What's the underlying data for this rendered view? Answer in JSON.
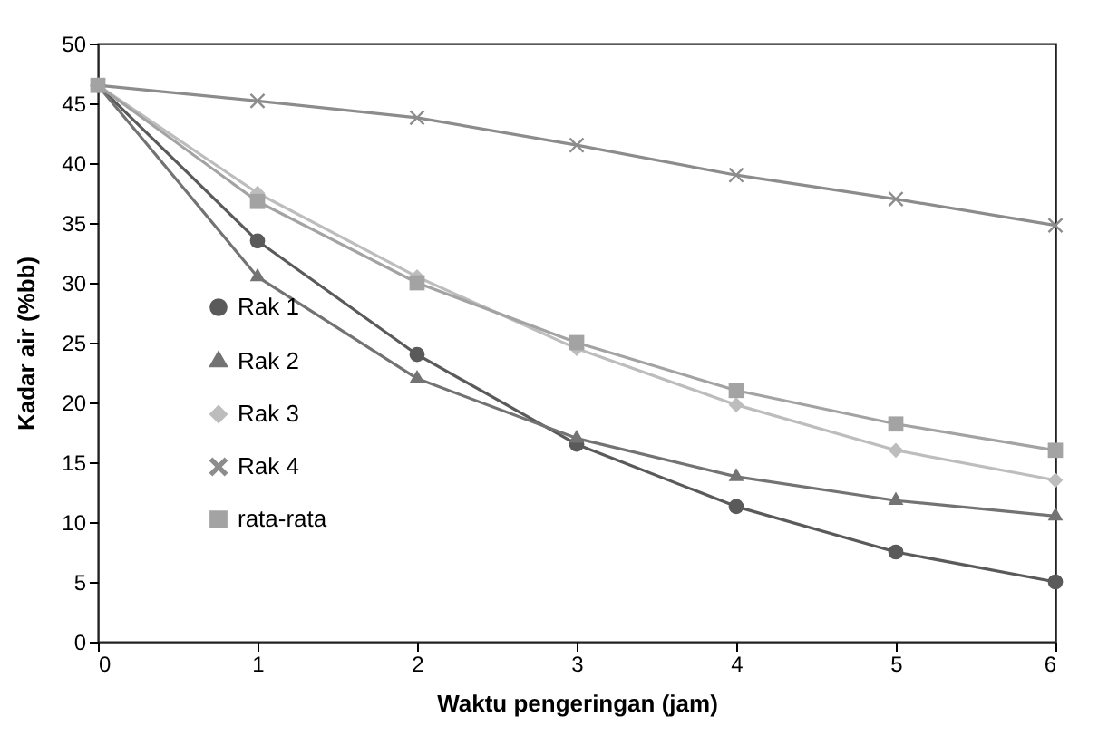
{
  "chart_data": {
    "type": "line",
    "xlabel": "Waktu pengeringan (jam)",
    "ylabel": "Kadar air (%bb)",
    "x": [
      0,
      1,
      2,
      3,
      4,
      5,
      6
    ],
    "xlim": [
      0,
      6
    ],
    "xticks": [
      0,
      1,
      2,
      3,
      4,
      5,
      6
    ],
    "ylim": [
      0,
      50
    ],
    "yticks": [
      0,
      5,
      10,
      15,
      20,
      25,
      30,
      35,
      40,
      45,
      50
    ],
    "grid": false,
    "legend": "bottom left",
    "series": [
      {
        "name": "Rak 1",
        "color": "#5a5a5a",
        "marker": "circle",
        "values": [
          46.5,
          33.5,
          24,
          16.5,
          11.3,
          7.5,
          5
        ]
      },
      {
        "name": "Rak 2",
        "color": "#737373",
        "marker": "triangle",
        "values": [
          46.5,
          30.5,
          22,
          17,
          13.8,
          11.8,
          10.5
        ]
      },
      {
        "name": "Rak 3",
        "color": "#bdbdbd",
        "marker": "diamond",
        "values": [
          46.5,
          37.5,
          30.5,
          24.5,
          19.8,
          16,
          13.5
        ]
      },
      {
        "name": "Rak 4",
        "color": "#8c8c8c",
        "marker": "cross",
        "values": [
          46.5,
          45.2,
          43.8,
          41.5,
          39,
          37,
          34.8
        ]
      },
      {
        "name": "rata-rata",
        "color": "#a3a3a3",
        "marker": "square",
        "values": [
          46.5,
          36.8,
          30,
          25,
          21,
          18.2,
          16
        ]
      }
    ]
  }
}
